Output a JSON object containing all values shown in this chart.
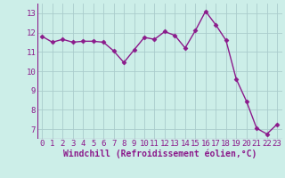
{
  "x": [
    0,
    1,
    2,
    3,
    4,
    5,
    6,
    7,
    8,
    9,
    10,
    11,
    12,
    13,
    14,
    15,
    16,
    17,
    18,
    19,
    20,
    21,
    22,
    23
  ],
  "y": [
    11.8,
    11.5,
    11.65,
    11.5,
    11.55,
    11.55,
    11.5,
    11.05,
    10.45,
    11.1,
    11.75,
    11.65,
    12.05,
    11.85,
    11.2,
    12.1,
    13.1,
    12.4,
    11.6,
    9.6,
    8.45,
    7.05,
    6.75,
    7.25
  ],
  "line_color": "#8b1a8b",
  "marker": "D",
  "markersize": 2.5,
  "linewidth": 1.0,
  "bg_color": "#cceee8",
  "grid_color": "#aacccc",
  "xlabel": "Windchill (Refroidissement éolien,°C)",
  "xlabel_color": "#8b1a8b",
  "tick_color": "#8b1a8b",
  "xlim": [
    -0.5,
    23.5
  ],
  "ylim": [
    6.5,
    13.5
  ],
  "yticks": [
    7,
    8,
    9,
    10,
    11,
    12,
    13
  ],
  "xticks": [
    0,
    1,
    2,
    3,
    4,
    5,
    6,
    7,
    8,
    9,
    10,
    11,
    12,
    13,
    14,
    15,
    16,
    17,
    18,
    19,
    20,
    21,
    22,
    23
  ],
  "tick_fontsize": 6.5,
  "xlabel_fontsize": 7.0
}
